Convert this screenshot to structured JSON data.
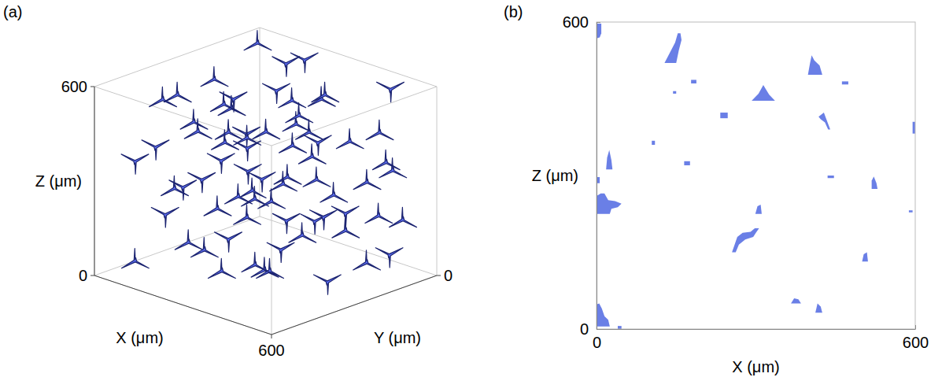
{
  "chart_data": [
    {
      "type": "scatter3d",
      "title": "(a)",
      "x_label": "X (μm)",
      "y_label": "Y (μm)",
      "z_label": "Z (μm)",
      "xlim": [
        0,
        600
      ],
      "ylim": [
        0,
        600
      ],
      "zlim": [
        0,
        600
      ],
      "xticks": [
        600
      ],
      "yticks": [
        0
      ],
      "zticks": [
        0,
        600
      ],
      "color": "#5b6cf0",
      "x": [
        40,
        120,
        210,
        300,
        390,
        480,
        560,
        80,
        170,
        260,
        350,
        440,
        530,
        30,
        140,
        230,
        320,
        410,
        500,
        580,
        60,
        150,
        250,
        340,
        430,
        520,
        100,
        190,
        280,
        370,
        460,
        550,
        20,
        110,
        200,
        290,
        380,
        470,
        570,
        70,
        160,
        240,
        330,
        420,
        510,
        590,
        50,
        130,
        220,
        310,
        400,
        490,
        560,
        90,
        180,
        270,
        360,
        450,
        540,
        10,
        115,
        205,
        295,
        385,
        475,
        565,
        45,
        135,
        225,
        315,
        405,
        495
      ],
      "y": [
        50,
        480,
        130,
        560,
        300,
        40,
        420,
        250,
        20,
        380,
        150,
        520,
        240,
        330,
        90,
        470,
        210,
        580,
        100,
        520,
        160,
        290,
        30,
        410,
        270,
        350,
        560,
        60,
        180,
        440,
        510,
        130,
        400,
        230,
        340,
        100,
        560,
        20,
        300,
        120,
        480,
        250,
        380,
        60,
        450,
        200,
        30,
        350,
        150,
        590,
        230,
        370,
        80,
        440,
        270,
        20,
        500,
        170,
        560,
        290,
        80,
        420,
        240,
        550,
        120,
        360,
        500,
        190,
        10,
        300,
        450,
        60
      ],
      "z": [
        580,
        560,
        590,
        570,
        585,
        565,
        575,
        540,
        555,
        545,
        530,
        560,
        480,
        500,
        470,
        490,
        460,
        485,
        455,
        470,
        440,
        495,
        475,
        450,
        410,
        390,
        380,
        400,
        370,
        395,
        360,
        385,
        350,
        375,
        405,
        355,
        320,
        300,
        280,
        310,
        290,
        270,
        305,
        260,
        285,
        250,
        295,
        265,
        220,
        200,
        180,
        210,
        190,
        170,
        205,
        160,
        195,
        150,
        175,
        185,
        110,
        90,
        60,
        120,
        40,
        80,
        30,
        100,
        70,
        20,
        115,
        50
      ]
    },
    {
      "type": "patches",
      "title": "(b)",
      "x_label": "X (μm)",
      "y_label": "Z (μm)",
      "xlim": [
        0,
        600
      ],
      "ylim": [
        0,
        600
      ],
      "xticks": [
        0,
        600
      ],
      "yticks": [
        0,
        600
      ],
      "color": "#6a7fe6",
      "patches": [
        {
          "x": [
            0,
            9,
            9,
            6,
            0
          ],
          "y": [
            597,
            597,
            578,
            570,
            568
          ]
        },
        {
          "x": [
            128,
            150,
            155,
            160,
            158,
            153,
            148,
            138
          ],
          "y": [
            520,
            520,
            545,
            565,
            578,
            578,
            560,
            540
          ]
        },
        {
          "x": [
            178,
            188,
            188,
            178
          ],
          "y": [
            480,
            480,
            487,
            487
          ]
        },
        {
          "x": [
            398,
            425,
            420,
            410,
            405,
            402
          ],
          "y": [
            497,
            497,
            515,
            525,
            535,
            520
          ]
        },
        {
          "x": [
            462,
            474,
            474,
            462
          ],
          "y": [
            478,
            478,
            484,
            484
          ]
        },
        {
          "x": [
            292,
            336,
            325,
            318,
            314,
            305
          ],
          "y": [
            446,
            446,
            458,
            470,
            477,
            460
          ]
        },
        {
          "x": [
            233,
            247,
            247,
            233
          ],
          "y": [
            412,
            412,
            423,
            423
          ]
        },
        {
          "x": [
            418,
            428,
            432,
            440,
            436,
            430,
            422
          ],
          "y": [
            415,
            423,
            412,
            390,
            390,
            404,
            410
          ]
        },
        {
          "x": [
            595,
            600,
            600,
            595
          ],
          "y": [
            382,
            382,
            405,
            405
          ]
        },
        {
          "x": [
            104,
            110,
            110,
            104
          ],
          "y": [
            360,
            360,
            368,
            368
          ]
        },
        {
          "x": [
            18,
            30,
            28,
            24,
            20
          ],
          "y": [
            312,
            312,
            330,
            350,
            335
          ]
        },
        {
          "x": [
            165,
            176,
            176,
            165
          ],
          "y": [
            320,
            320,
            328,
            328
          ]
        },
        {
          "x": [
            0,
            25,
            28,
            40,
            47,
            35,
            22,
            15,
            8,
            0
          ],
          "y": [
            225,
            225,
            235,
            238,
            245,
            250,
            252,
            265,
            265,
            260
          ]
        },
        {
          "x": [
            0,
            6,
            6,
            0
          ],
          "y": [
            285,
            285,
            297,
            297
          ]
        },
        {
          "x": [
            435,
            447,
            447,
            435
          ],
          "y": [
            295,
            295,
            300,
            300
          ]
        },
        {
          "x": [
            518,
            529,
            527,
            522,
            518
          ],
          "y": [
            274,
            274,
            285,
            298,
            290
          ]
        },
        {
          "x": [
            299,
            311,
            309,
            303
          ],
          "y": [
            225,
            225,
            243,
            240
          ]
        },
        {
          "x": [
            255,
            262,
            268,
            280,
            295,
            300,
            306,
            298,
            290,
            275,
            265
          ],
          "y": [
            150,
            150,
            165,
            175,
            180,
            188,
            197,
            197,
            190,
            188,
            180
          ]
        },
        {
          "x": [
            588,
            595,
            595,
            588
          ],
          "y": [
            228,
            228,
            232,
            232
          ]
        },
        {
          "x": [
            500,
            511,
            509,
            503
          ],
          "y": [
            132,
            132,
            150,
            146
          ]
        },
        {
          "x": [
            0,
            25,
            22,
            15,
            10,
            5,
            0
          ],
          "y": [
            5,
            5,
            18,
            25,
            40,
            50,
            48
          ]
        },
        {
          "x": [
            366,
            385,
            380,
            372
          ],
          "y": [
            50,
            50,
            58,
            60
          ]
        },
        {
          "x": [
            412,
            425,
            422,
            416
          ],
          "y": [
            32,
            32,
            44,
            50
          ]
        },
        {
          "x": [
            40,
            47,
            47,
            40
          ],
          "y": [
            0,
            0,
            6,
            6
          ]
        },
        {
          "x": [
            144,
            150,
            150,
            144
          ],
          "y": [
            460,
            460,
            465,
            465
          ]
        }
      ]
    }
  ]
}
